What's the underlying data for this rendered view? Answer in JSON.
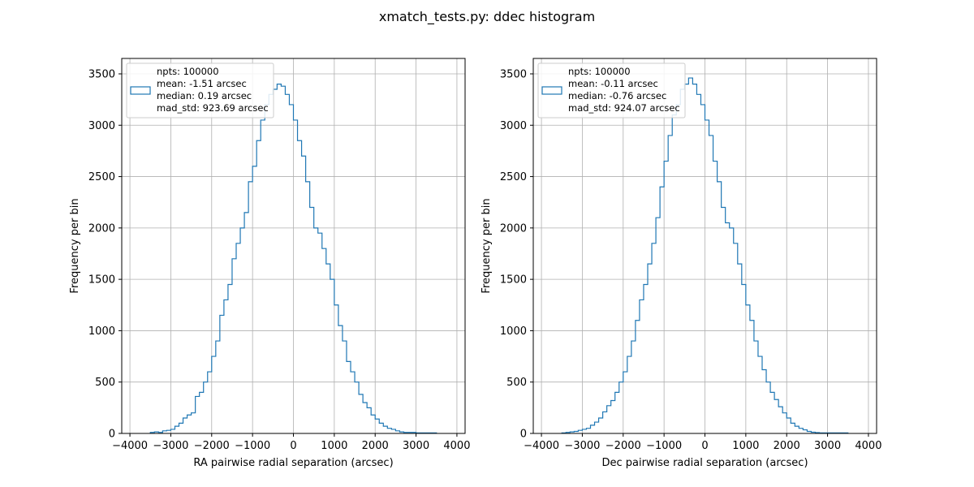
{
  "figure": {
    "suptitle": "xmatch_tests.py: ddec histogram"
  },
  "colors": {
    "histogram_line": "#1f77b4",
    "grid": "#b0b0b0",
    "axes": "#000000",
    "legend_border": "#cccccc"
  },
  "chart_data": [
    {
      "type": "histogram",
      "xlabel": "RA pairwise radial separation (arcsec)",
      "ylabel": "Frequency per bin",
      "xlim": [
        -4200,
        4200
      ],
      "ylim": [
        0,
        3650
      ],
      "xticks": [
        -4000,
        -3000,
        -2000,
        -1000,
        0,
        1000,
        2000,
        3000,
        4000
      ],
      "yticks": [
        0,
        500,
        1000,
        1500,
        2000,
        2500,
        3000,
        3500
      ],
      "grid": true,
      "legend_position": "upper-left",
      "legend_lines": [
        "npts: 100000",
        "mean:  -1.51 arcsec",
        "median:  0.19 arcsec",
        "mad_std: 923.69 arcsec"
      ],
      "bin_width": 100,
      "bin_start": -3500,
      "values": [
        10,
        15,
        10,
        25,
        30,
        40,
        70,
        100,
        150,
        180,
        200,
        360,
        400,
        500,
        600,
        750,
        900,
        1150,
        1300,
        1450,
        1700,
        1850,
        2000,
        2150,
        2450,
        2600,
        2850,
        3050,
        3200,
        3300,
        3350,
        3400,
        3380,
        3300,
        3200,
        3050,
        2850,
        2700,
        2450,
        2200,
        2000,
        1950,
        1800,
        1650,
        1500,
        1250,
        1050,
        900,
        700,
        600,
        500,
        380,
        300,
        250,
        180,
        140,
        100,
        70,
        50,
        40,
        25,
        15,
        10,
        10,
        10,
        5,
        5,
        5,
        5,
        5
      ]
    },
    {
      "type": "histogram",
      "xlabel": "Dec pairwise radial separation (arcsec)",
      "ylabel": "Frequency per bin",
      "xlim": [
        -4200,
        4200
      ],
      "ylim": [
        0,
        3650
      ],
      "xticks": [
        -4000,
        -3000,
        -2000,
        -1000,
        0,
        1000,
        2000,
        3000,
        4000
      ],
      "yticks": [
        0,
        500,
        1000,
        1500,
        2000,
        2500,
        3000,
        3500
      ],
      "grid": true,
      "legend_position": "upper-left",
      "legend_lines": [
        "npts: 100000",
        "mean:  -0.11 arcsec",
        "median:  -0.76 arcsec",
        "mad_std: 924.07 arcsec"
      ],
      "bin_width": 100,
      "bin_start": -3500,
      "values": [
        5,
        10,
        15,
        20,
        30,
        40,
        50,
        80,
        110,
        150,
        210,
        270,
        320,
        400,
        500,
        600,
        750,
        900,
        1100,
        1300,
        1450,
        1650,
        1850,
        2100,
        2400,
        2650,
        2900,
        3100,
        3200,
        3350,
        3400,
        3460,
        3400,
        3300,
        3200,
        3050,
        2900,
        2650,
        2450,
        2200,
        2050,
        2000,
        1850,
        1650,
        1450,
        1250,
        1100,
        900,
        750,
        620,
        500,
        400,
        330,
        260,
        200,
        150,
        100,
        70,
        50,
        35,
        20,
        12,
        8,
        5,
        5,
        5,
        5,
        5,
        5,
        5
      ]
    }
  ]
}
